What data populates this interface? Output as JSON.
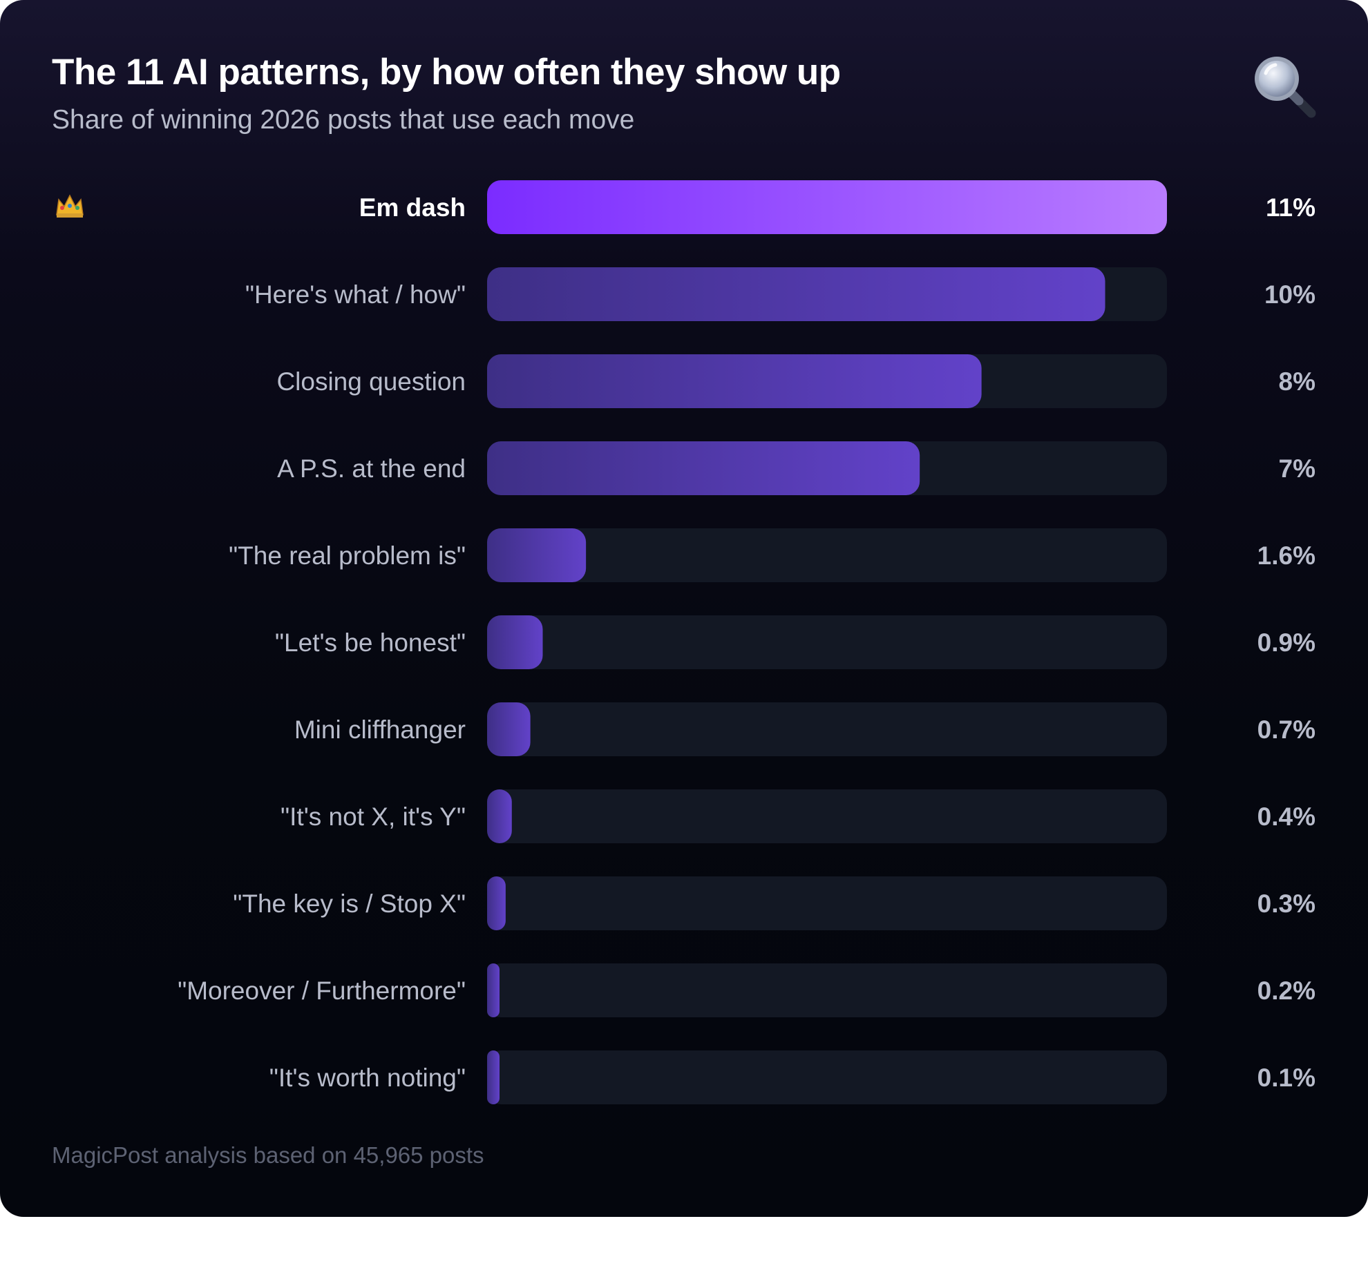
{
  "title": "The 11 AI patterns, by how often they show up",
  "subtitle": "Share of winning 2026 posts that use each move",
  "footnote": "MagicPost analysis based on 45,965 posts",
  "icons": {
    "header": "magnifying-glass-icon",
    "top_rank": "crown-icon"
  },
  "colors": {
    "background": "#05070f",
    "track": "#131824",
    "top_bar_start": "#7b2cff",
    "top_bar_end": "#b97cff",
    "bar_start": "#3e2f86",
    "bar_end": "#6242c9",
    "label_top": "#ffffff",
    "label": "#b8bccb"
  },
  "chart_data": {
    "type": "bar",
    "orientation": "horizontal",
    "title": "The 11 AI patterns, by how often they show up",
    "subtitle": "Share of winning 2026 posts that use each move",
    "categories": [
      "Em dash",
      "\"Here's what / how\"",
      "Closing question",
      "A P.S. at the end",
      "\"The real problem is\"",
      "\"Let's be honest\"",
      "Mini cliffhanger",
      "\"It's not X, it's Y\"",
      "\"The key is / Stop X\"",
      "\"Moreover / Furthermore\"",
      "\"It's worth noting\""
    ],
    "values": [
      11,
      10,
      8,
      7,
      1.6,
      0.9,
      0.7,
      0.4,
      0.3,
      0.2,
      0.1
    ],
    "value_labels": [
      "11%",
      "10%",
      "8%",
      "7%",
      "1.6%",
      "0.9%",
      "0.7%",
      "0.4%",
      "0.3%",
      "0.2%",
      "0.1%"
    ],
    "unit": "%",
    "xlim": [
      0,
      11
    ],
    "grid": false,
    "legend": "none",
    "highlight_index": 0
  }
}
